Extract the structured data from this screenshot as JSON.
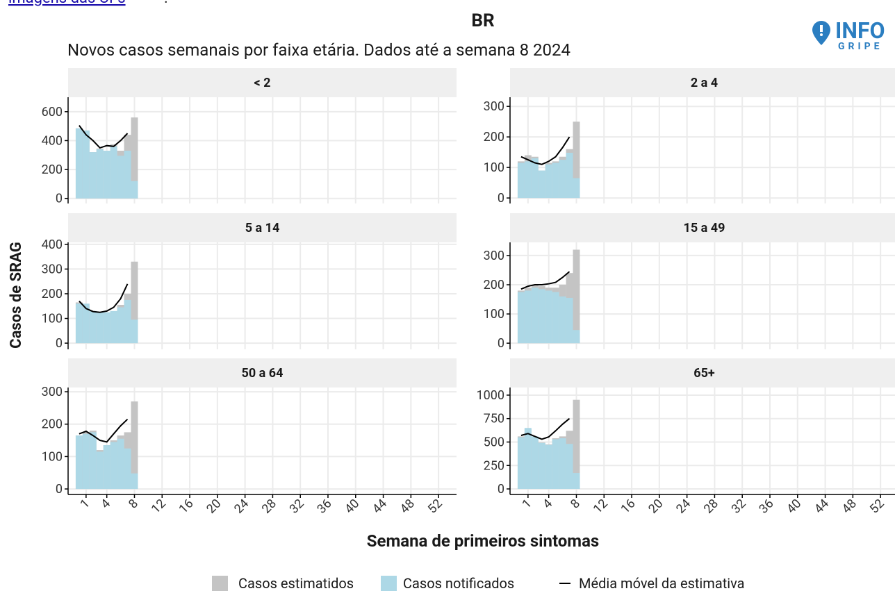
{
  "header": {
    "link_text": "imagens das UFs",
    "link_tail": ".",
    "title": "BR",
    "subtitle": "Novos casos semanais por faixa etária. Dados até a semana 8 2024",
    "logo_top": "INFO",
    "logo_bottom": "GRIPE"
  },
  "axes": {
    "xlabel": "Semana de primeiros sintomas",
    "ylabel": "Casos de SRAG"
  },
  "chart_data": [
    {
      "type": "bar",
      "title": "< 2",
      "x": [
        0,
        1,
        2,
        3,
        4,
        5,
        6,
        7,
        8
      ],
      "xlim": [
        -1.6,
        54.6
      ],
      "xticks": [
        1,
        4,
        8,
        12,
        16,
        20,
        24,
        28,
        32,
        36,
        40,
        44,
        48,
        52
      ],
      "ylim": [
        -35,
        700
      ],
      "yticks": [
        0,
        200,
        400,
        600
      ],
      "grid": true,
      "series": [
        {
          "name": "Casos estimatidos",
          "color": "#c4c4c4",
          "values": [
            485,
            470,
            320,
            345,
            330,
            375,
            330,
            440,
            560
          ]
        },
        {
          "name": "Casos notificados",
          "color": "#add8e6",
          "values": [
            485,
            470,
            320,
            340,
            330,
            360,
            295,
            330,
            120
          ]
        },
        {
          "name": "Média móvel da estimativa",
          "color": "#000000",
          "values": [
            505,
            440,
            400,
            350,
            365,
            360,
            400,
            450,
            null
          ]
        }
      ]
    },
    {
      "type": "bar",
      "title": "2 a 4",
      "x": [
        0,
        1,
        2,
        3,
        4,
        5,
        6,
        7,
        8
      ],
      "xlim": [
        -1.6,
        54.6
      ],
      "xticks": [
        1,
        4,
        8,
        12,
        16,
        20,
        24,
        28,
        32,
        36,
        40,
        44,
        48,
        52
      ],
      "ylim": [
        -18,
        330
      ],
      "yticks": [
        0,
        100,
        200,
        300
      ],
      "grid": true,
      "series": [
        {
          "color": "#c4c4c4",
          "values": [
            120,
            140,
            135,
            90,
            115,
            120,
            135,
            160,
            250
          ]
        },
        {
          "color": "#add8e6",
          "values": [
            115,
            120,
            130,
            90,
            110,
            115,
            125,
            148,
            65
          ]
        },
        {
          "color": "#000000",
          "values": [
            135,
            125,
            115,
            110,
            120,
            135,
            165,
            200,
            null
          ]
        }
      ]
    },
    {
      "type": "bar",
      "title": "5 a 14",
      "x": [
        0,
        1,
        2,
        3,
        4,
        5,
        6,
        7,
        8
      ],
      "xlim": [
        -1.6,
        54.6
      ],
      "xticks": [
        1,
        4,
        8,
        12,
        16,
        20,
        24,
        28,
        32,
        36,
        40,
        44,
        48,
        52
      ],
      "ylim": [
        -25,
        408
      ],
      "yticks": [
        0,
        100,
        200,
        300,
        400
      ],
      "grid": true,
      "series": [
        {
          "color": "#c4c4c4",
          "values": [
            165,
            150,
            130,
            125,
            120,
            125,
            155,
            200,
            330
          ]
        },
        {
          "color": "#add8e6",
          "values": [
            160,
            160,
            130,
            125,
            125,
            130,
            145,
            175,
            95
          ]
        },
        {
          "color": "#000000",
          "values": [
            170,
            140,
            128,
            125,
            130,
            145,
            180,
            240,
            null
          ]
        }
      ]
    },
    {
      "type": "bar",
      "title": "15 a 49",
      "x": [
        0,
        1,
        2,
        3,
        4,
        5,
        6,
        7,
        8
      ],
      "xlim": [
        -1.6,
        54.6
      ],
      "xticks": [
        1,
        4,
        8,
        12,
        16,
        20,
        24,
        28,
        32,
        36,
        40,
        44,
        48,
        52
      ],
      "ylim": [
        -21,
        345
      ],
      "yticks": [
        0,
        100,
        200,
        300
      ],
      "grid": true,
      "series": [
        {
          "color": "#c4c4c4",
          "values": [
            180,
            190,
            200,
            195,
            190,
            190,
            200,
            240,
            320
          ]
        },
        {
          "color": "#add8e6",
          "values": [
            175,
            180,
            190,
            185,
            180,
            175,
            160,
            155,
            45
          ]
        },
        {
          "color": "#000000",
          "values": [
            185,
            195,
            200,
            200,
            203,
            208,
            225,
            245,
            null
          ]
        }
      ]
    },
    {
      "type": "bar",
      "title": "50 a 64",
      "x": [
        0,
        1,
        2,
        3,
        4,
        5,
        6,
        7,
        8
      ],
      "xlim": [
        -1.6,
        54.6
      ],
      "xticks": [
        1,
        4,
        8,
        12,
        16,
        20,
        24,
        28,
        32,
        36,
        40,
        44,
        48,
        52
      ],
      "ylim": [
        -17,
        313
      ],
      "yticks": [
        0,
        100,
        200,
        300
      ],
      "grid": true,
      "series": [
        {
          "color": "#c4c4c4",
          "values": [
            165,
            175,
            180,
            120,
            135,
            150,
            165,
            175,
            270
          ]
        },
        {
          "color": "#add8e6",
          "values": [
            165,
            170,
            175,
            115,
            135,
            145,
            155,
            125,
            48
          ]
        },
        {
          "color": "#000000",
          "values": [
            170,
            178,
            165,
            150,
            145,
            170,
            195,
            215,
            null
          ]
        }
      ]
    },
    {
      "type": "bar",
      "title": "65+",
      "x": [
        0,
        1,
        2,
        3,
        4,
        5,
        6,
        7,
        8
      ],
      "xlim": [
        -1.6,
        54.6
      ],
      "xticks": [
        1,
        4,
        8,
        12,
        16,
        20,
        24,
        28,
        32,
        36,
        40,
        44,
        48,
        52
      ],
      "ylim": [
        -59,
        1081
      ],
      "yticks": [
        0,
        250,
        500,
        750,
        1000
      ],
      "grid": true,
      "series": [
        {
          "color": "#c4c4c4",
          "values": [
            560,
            640,
            550,
            495,
            475,
            540,
            560,
            620,
            950
          ]
        },
        {
          "color": "#add8e6",
          "values": [
            550,
            650,
            560,
            490,
            470,
            530,
            540,
            480,
            170
          ]
        },
        {
          "color": "#000000",
          "values": [
            570,
            590,
            560,
            530,
            555,
            620,
            690,
            750,
            null
          ]
        }
      ]
    }
  ]
}
